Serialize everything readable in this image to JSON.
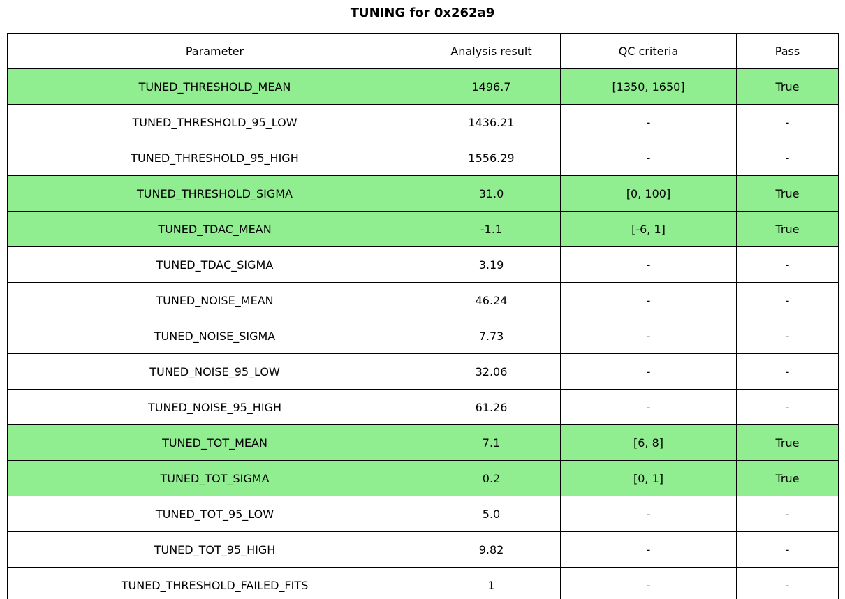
{
  "title": "TUNING for 0x262a9",
  "colors": {
    "highlight": "#90ee90",
    "border": "#000000",
    "background": "#ffffff"
  },
  "chart_data": {
    "type": "table",
    "title": "TUNING for 0x262a9",
    "columns": [
      "Parameter",
      "Analysis result",
      "QC criteria",
      "Pass"
    ],
    "rows": [
      {
        "cells": [
          "TUNED_THRESHOLD_MEAN",
          "1496.7",
          "[1350, 1650]",
          "True"
        ],
        "highlight": true
      },
      {
        "cells": [
          "TUNED_THRESHOLD_95_LOW",
          "1436.21",
          "-",
          "-"
        ],
        "highlight": false
      },
      {
        "cells": [
          "TUNED_THRESHOLD_95_HIGH",
          "1556.29",
          "-",
          "-"
        ],
        "highlight": false
      },
      {
        "cells": [
          "TUNED_THRESHOLD_SIGMA",
          "31.0",
          "[0, 100]",
          "True"
        ],
        "highlight": true
      },
      {
        "cells": [
          "TUNED_TDAC_MEAN",
          "-1.1",
          "[-6, 1]",
          "True"
        ],
        "highlight": true
      },
      {
        "cells": [
          "TUNED_TDAC_SIGMA",
          "3.19",
          "-",
          "-"
        ],
        "highlight": false
      },
      {
        "cells": [
          "TUNED_NOISE_MEAN",
          "46.24",
          "-",
          "-"
        ],
        "highlight": false
      },
      {
        "cells": [
          "TUNED_NOISE_SIGMA",
          "7.73",
          "-",
          "-"
        ],
        "highlight": false
      },
      {
        "cells": [
          "TUNED_NOISE_95_LOW",
          "32.06",
          "-",
          "-"
        ],
        "highlight": false
      },
      {
        "cells": [
          "TUNED_NOISE_95_HIGH",
          "61.26",
          "-",
          "-"
        ],
        "highlight": false
      },
      {
        "cells": [
          "TUNED_TOT_MEAN",
          "7.1",
          "[6, 8]",
          "True"
        ],
        "highlight": true
      },
      {
        "cells": [
          "TUNED_TOT_SIGMA",
          "0.2",
          "[0, 1]",
          "True"
        ],
        "highlight": true
      },
      {
        "cells": [
          "TUNED_TOT_95_LOW",
          "5.0",
          "-",
          "-"
        ],
        "highlight": false
      },
      {
        "cells": [
          "TUNED_TOT_95_HIGH",
          "9.82",
          "-",
          "-"
        ],
        "highlight": false
      },
      {
        "cells": [
          "TUNED_THRESHOLD_FAILED_FITS",
          "1",
          "-",
          "-"
        ],
        "highlight": false
      }
    ]
  }
}
